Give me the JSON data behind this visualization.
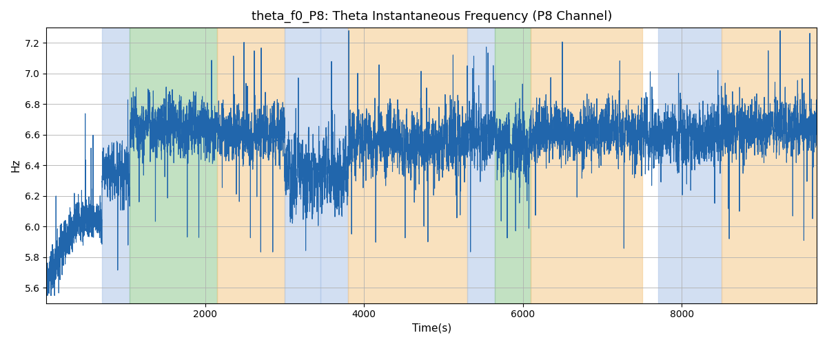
{
  "title": "theta_f0_P8: Theta Instantaneous Frequency (P8 Channel)",
  "xlabel": "Time(s)",
  "ylabel": "Hz",
  "ylim": [
    5.5,
    7.3
  ],
  "xlim": [
    0,
    9700
  ],
  "line_color": "#2166ac",
  "line_width": 0.8,
  "background_color": "#ffffff",
  "grid_color": "#b0b0b0",
  "title_fontsize": 13,
  "label_fontsize": 11,
  "tick_fontsize": 10,
  "regions": [
    {
      "start": 700,
      "end": 1050,
      "color": "#aec6e8",
      "alpha": 0.55
    },
    {
      "start": 1050,
      "end": 2150,
      "color": "#90c990",
      "alpha": 0.55
    },
    {
      "start": 2150,
      "end": 3000,
      "color": "#f5c98a",
      "alpha": 0.55
    },
    {
      "start": 3000,
      "end": 3450,
      "color": "#aec6e8",
      "alpha": 0.55
    },
    {
      "start": 3450,
      "end": 3800,
      "color": "#aec6e8",
      "alpha": 0.55
    },
    {
      "start": 3800,
      "end": 5300,
      "color": "#f5c98a",
      "alpha": 0.55
    },
    {
      "start": 5300,
      "end": 5650,
      "color": "#aec6e8",
      "alpha": 0.55
    },
    {
      "start": 5650,
      "end": 6100,
      "color": "#90c990",
      "alpha": 0.55
    },
    {
      "start": 6100,
      "end": 7500,
      "color": "#f5c98a",
      "alpha": 0.55
    },
    {
      "start": 7500,
      "end": 7700,
      "color": "#ffffff",
      "alpha": 1.0
    },
    {
      "start": 7700,
      "end": 8500,
      "color": "#aec6e8",
      "alpha": 0.55
    },
    {
      "start": 8500,
      "end": 9700,
      "color": "#f5c98a",
      "alpha": 0.55
    }
  ],
  "yticks": [
    5.6,
    5.8,
    6.0,
    6.2,
    6.4,
    6.6,
    6.8,
    7.0,
    7.2
  ],
  "xticks": [
    2000,
    4000,
    6000,
    8000
  ]
}
